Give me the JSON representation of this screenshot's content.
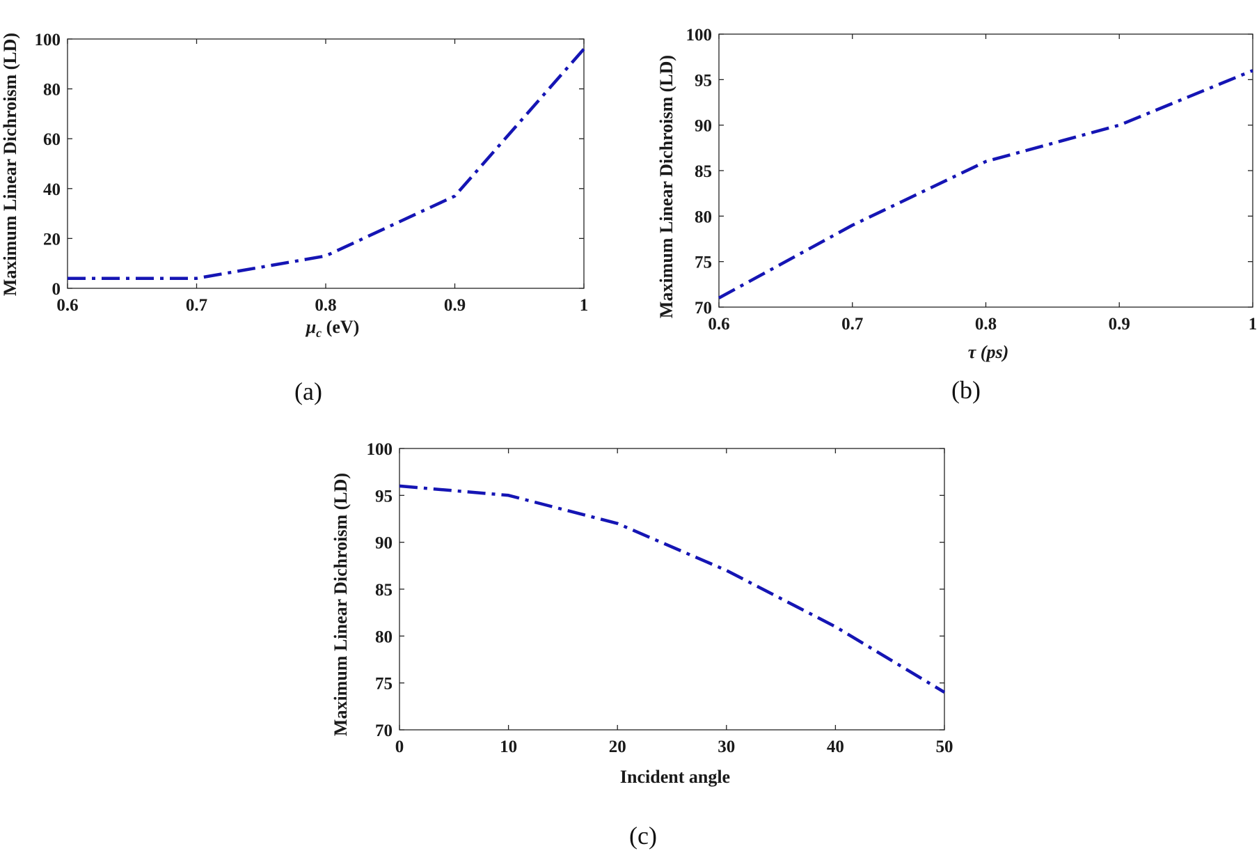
{
  "chart_data": [
    {
      "panel": "(a)",
      "type": "line",
      "xlabel": "μc (eV)",
      "xlabel_main": "μ",
      "xlabel_sub": "c",
      "xlabel_rest": " (eV)",
      "ylabel": "Maximum Linear Dichroism (LD)",
      "xlim": [
        0.6,
        1.0
      ],
      "ylim": [
        0,
        100
      ],
      "xticks": [
        0.6,
        0.7,
        0.8,
        0.9,
        1.0
      ],
      "xtick_labels": [
        "0.6",
        "0.7",
        "0.8",
        "0.9",
        "1"
      ],
      "yticks": [
        0,
        20,
        40,
        60,
        80,
        100
      ],
      "ytick_labels": [
        "0",
        "20",
        "40",
        "60",
        "80",
        "100"
      ],
      "grid": false,
      "series": [
        {
          "x": [
            0.6,
            0.7,
            0.8,
            0.9,
            1.0
          ],
          "y": [
            4,
            4,
            13,
            37,
            96
          ],
          "color": "#1515b4"
        }
      ]
    },
    {
      "panel": "(b)",
      "type": "line",
      "xlabel": "τ (ps)",
      "ylabel": "Maximum Linear Dichroism (LD)",
      "xlim": [
        0.6,
        1.0
      ],
      "ylim": [
        70,
        100
      ],
      "xticks": [
        0.6,
        0.7,
        0.8,
        0.9,
        1.0
      ],
      "xtick_labels": [
        "0.6",
        "0.7",
        "0.8",
        "0.9",
        "1"
      ],
      "yticks": [
        70,
        75,
        80,
        85,
        90,
        95,
        100
      ],
      "ytick_labels": [
        "70",
        "75",
        "80",
        "85",
        "90",
        "95",
        "100"
      ],
      "grid": false,
      "series": [
        {
          "x": [
            0.6,
            0.7,
            0.8,
            0.9,
            1.0
          ],
          "y": [
            71,
            79,
            86,
            90,
            96
          ],
          "color": "#1515b4"
        }
      ]
    },
    {
      "panel": "(c)",
      "type": "line",
      "xlabel": "Incident angle",
      "ylabel": "Maximum Linear Dichroism (LD)",
      "xlim": [
        0,
        50
      ],
      "ylim": [
        70,
        100
      ],
      "xticks": [
        0,
        10,
        20,
        30,
        40,
        50
      ],
      "xtick_labels": [
        "0",
        "10",
        "20",
        "30",
        "40",
        "50"
      ],
      "yticks": [
        70,
        75,
        80,
        85,
        90,
        95,
        100
      ],
      "ytick_labels": [
        "70",
        "75",
        "80",
        "85",
        "90",
        "95",
        "100"
      ],
      "grid": false,
      "series": [
        {
          "x": [
            0,
            10,
            20,
            30,
            40,
            50
          ],
          "y": [
            96,
            95,
            92,
            87,
            81,
            74
          ],
          "color": "#1515b4"
        }
      ]
    }
  ]
}
